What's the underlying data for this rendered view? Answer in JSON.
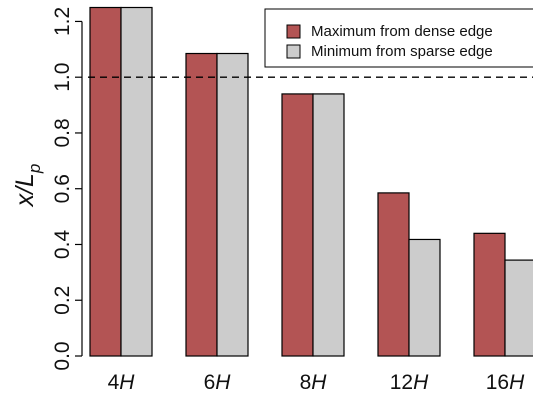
{
  "chart_data": {
    "type": "bar",
    "categories": [
      "4H",
      "6H",
      "8H",
      "12H",
      "16H"
    ],
    "category_labels": [
      {
        "num": "4",
        "var": "H"
      },
      {
        "num": "6",
        "var": "H"
      },
      {
        "num": "8",
        "var": "H"
      },
      {
        "num": "12",
        "var": "H"
      },
      {
        "num": "16",
        "var": "H"
      }
    ],
    "series": [
      {
        "name": "Maximum from dense edge",
        "color": "#b35454",
        "values": [
          1.25,
          1.085,
          0.94,
          0.585,
          0.44
        ]
      },
      {
        "name": "Minimum from sparse edge",
        "color": "#cccccc",
        "values": [
          1.25,
          1.085,
          0.94,
          0.418,
          0.344
        ]
      }
    ],
    "ylabel": {
      "main": "x/L",
      "sub": "p"
    },
    "ylim": [
      0,
      1.25
    ],
    "yticks": [
      "0.0",
      "0.2",
      "0.4",
      "0.6",
      "0.8",
      "1.0",
      "1.2"
    ],
    "reference_line": {
      "y": 1.0,
      "style": "dashed"
    },
    "legend_position": "top-right",
    "grid": false
  }
}
